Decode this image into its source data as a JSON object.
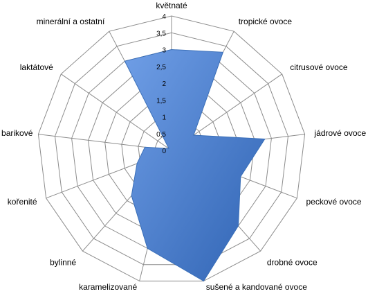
{
  "chart_data": {
    "type": "radar",
    "categories": [
      "květnaté",
      "tropické ovoce",
      "citrusové ovoce",
      "jádrové ovoce",
      "peckové ovoce",
      "drobné ovoce",
      "sušené a kandované ovoce",
      "karamelizované",
      "bylinné",
      "kořenité",
      "barikové",
      "laktátové",
      "minerální a ostatní"
    ],
    "series": [
      {
        "values": [
          3.0,
          3.3,
          0.8,
          2.8,
          2.2,
          3.0,
          4.0,
          3.0,
          1.8,
          1.1,
          0.8,
          0.1,
          3.0
        ]
      }
    ],
    "rlim": [
      0,
      4
    ],
    "ticks": [
      "0",
      "0,5",
      "1",
      "1,5",
      "2",
      "2,5",
      "3",
      "3,5",
      "4"
    ],
    "grid": true,
    "legend": "none",
    "colors": {
      "fill_light": "#6f9ee6",
      "fill_dark": "#2f63b3",
      "grid": "#8c8c8c"
    }
  }
}
